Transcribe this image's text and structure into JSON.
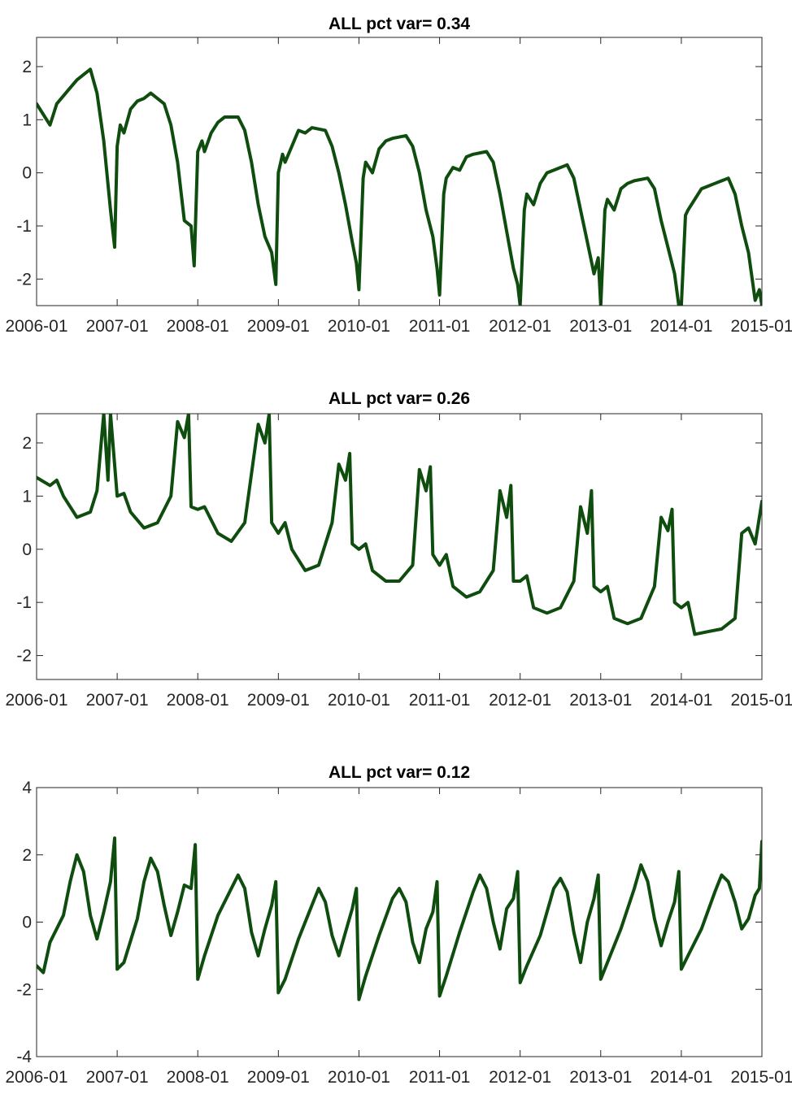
{
  "figure": {
    "line_color": "#0f4d0f"
  },
  "chart_data": [
    {
      "type": "line",
      "title": "ALL pct var=  0.34",
      "xlabel": "",
      "ylabel": "",
      "x_ticks": [
        "2006-01",
        "2007-01",
        "2008-01",
        "2009-01",
        "2010-01",
        "2011-01",
        "2012-01",
        "2013-01",
        "2014-01",
        "2015-01"
      ],
      "xlim": [
        "2006-01",
        "2015-01"
      ],
      "y_ticks": [
        -2,
        -1,
        0,
        1,
        2
      ],
      "ylim": [
        -2.5,
        2.55
      ],
      "grid": false,
      "series": [
        {
          "x": [
            "2006-01",
            "2006-03",
            "2006-04",
            "2006-06",
            "2006-07",
            "2006-09",
            "2006-10",
            "2006-11",
            "2006-12",
            "2006-12-20",
            "2007-01",
            "2007-01-15",
            "2007-02",
            "2007-03",
            "2007-04",
            "2007-05",
            "2007-06",
            "2007-08",
            "2007-09",
            "2007-10",
            "2007-11",
            "2007-12",
            "2007-12-15",
            "2008-01",
            "2008-01-20",
            "2008-02",
            "2008-03",
            "2008-04",
            "2008-05",
            "2008-07",
            "2008-08",
            "2008-09",
            "2008-10",
            "2008-11",
            "2008-12",
            "2008-12-20",
            "2009-01",
            "2009-01-20",
            "2009-02",
            "2009-03",
            "2009-04",
            "2009-05",
            "2009-06",
            "2009-08",
            "2009-09",
            "2009-10",
            "2009-11",
            "2009-12",
            "2009-12-20",
            "2010-01",
            "2010-01-20",
            "2010-02",
            "2010-03",
            "2010-04",
            "2010-05",
            "2010-06",
            "2010-08",
            "2010-09",
            "2010-10",
            "2010-11",
            "2010-12",
            "2010-12-20",
            "2011-01",
            "2011-01-20",
            "2011-02",
            "2011-03",
            "2011-04",
            "2011-05",
            "2011-06",
            "2011-08",
            "2011-09",
            "2011-10",
            "2011-11",
            "2011-12",
            "2011-12-20",
            "2012-01",
            "2012-01-20",
            "2012-02",
            "2012-03",
            "2012-04",
            "2012-05",
            "2012-06",
            "2012-08",
            "2012-09",
            "2012-10",
            "2012-11",
            "2012-12",
            "2012-12-20",
            "2013-01",
            "2013-01-20",
            "2013-02",
            "2013-03",
            "2013-04",
            "2013-05",
            "2013-06",
            "2013-08",
            "2013-09",
            "2013-10",
            "2013-11",
            "2013-12",
            "2013-12-20",
            "2014-01",
            "2014-01-20",
            "2014-02",
            "2014-03",
            "2014-04",
            "2014-05",
            "2014-06",
            "2014-08",
            "2014-09",
            "2014-10",
            "2014-11",
            "2014-12",
            "2014-12-20",
            "2015-01"
          ],
          "y": [
            1.3,
            0.9,
            1.3,
            1.6,
            1.75,
            1.95,
            1.5,
            0.6,
            -0.7,
            -1.4,
            0.5,
            0.9,
            0.75,
            1.2,
            1.35,
            1.4,
            1.5,
            1.3,
            0.9,
            0.2,
            -0.9,
            -1.0,
            -1.75,
            0.4,
            0.6,
            0.4,
            0.75,
            0.95,
            1.05,
            1.05,
            0.8,
            0.2,
            -0.6,
            -1.2,
            -1.5,
            -2.1,
            0.0,
            0.35,
            0.2,
            0.5,
            0.8,
            0.75,
            0.85,
            0.8,
            0.5,
            0.0,
            -0.6,
            -1.3,
            -1.7,
            -2.2,
            -0.1,
            0.2,
            0.0,
            0.45,
            0.6,
            0.65,
            0.7,
            0.5,
            0.0,
            -0.7,
            -1.2,
            -1.8,
            -2.3,
            -0.4,
            -0.1,
            0.1,
            0.05,
            0.3,
            0.35,
            0.4,
            0.2,
            -0.4,
            -1.1,
            -1.8,
            -2.1,
            -2.5,
            -0.7,
            -0.4,
            -0.6,
            -0.2,
            0.0,
            0.05,
            0.15,
            -0.1,
            -0.7,
            -1.3,
            -1.9,
            -1.6,
            -2.5,
            -0.7,
            -0.5,
            -0.7,
            -0.3,
            -0.2,
            -0.15,
            -0.1,
            -0.3,
            -0.9,
            -1.4,
            -1.9,
            -2.5,
            -2.5,
            -0.8,
            -0.7,
            -0.5,
            -0.3,
            -0.25,
            -0.2,
            -0.1,
            -0.4,
            -1.0,
            -1.5,
            -2.4,
            -2.2,
            -2.5
          ],
          "color": "#0f4d0f"
        }
      ]
    },
    {
      "type": "line",
      "title": "ALL pct var=  0.26",
      "xlabel": "",
      "ylabel": "",
      "x_ticks": [
        "2006-01",
        "2007-01",
        "2008-01",
        "2009-01",
        "2010-01",
        "2011-01",
        "2012-01",
        "2013-01",
        "2014-01",
        "2015-01"
      ],
      "xlim": [
        "2006-01",
        "2015-01"
      ],
      "y_ticks": [
        -2,
        -1,
        0,
        1,
        2
      ],
      "ylim": [
        -2.45,
        2.55
      ],
      "grid": false,
      "series": [
        {
          "x": [
            "2006-01",
            "2006-03",
            "2006-04",
            "2006-05",
            "2006-07",
            "2006-09",
            "2006-10",
            "2006-11",
            "2006-11-20",
            "2006-12",
            "2007-01",
            "2007-02",
            "2007-03",
            "2007-05",
            "2007-07",
            "2007-09",
            "2007-10",
            "2007-11",
            "2007-11-20",
            "2007-12",
            "2008-01",
            "2008-02",
            "2008-04",
            "2008-06",
            "2008-08",
            "2008-10",
            "2008-11",
            "2008-11-20",
            "2008-12",
            "2009-01",
            "2009-02",
            "2009-03",
            "2009-05",
            "2009-07",
            "2009-09",
            "2009-10",
            "2009-11",
            "2009-11-20",
            "2009-12",
            "2010-01",
            "2010-02",
            "2010-03",
            "2010-05",
            "2010-07",
            "2010-09",
            "2010-10",
            "2010-11",
            "2010-11-20",
            "2010-12",
            "2011-01",
            "2011-02",
            "2011-03",
            "2011-05",
            "2011-07",
            "2011-09",
            "2011-10",
            "2011-11",
            "2011-11-20",
            "2011-12",
            "2012-01",
            "2012-02",
            "2012-03",
            "2012-05",
            "2012-07",
            "2012-09",
            "2012-10",
            "2012-11",
            "2012-11-20",
            "2012-12",
            "2013-01",
            "2013-02",
            "2013-03",
            "2013-05",
            "2013-07",
            "2013-09",
            "2013-10",
            "2013-11",
            "2013-11-20",
            "2013-12",
            "2014-01",
            "2014-02",
            "2014-03",
            "2014-05",
            "2014-07",
            "2014-09",
            "2014-10",
            "2014-11",
            "2014-12",
            "2015-01"
          ],
          "y": [
            1.35,
            1.2,
            1.3,
            1.0,
            0.6,
            0.7,
            1.1,
            2.55,
            1.3,
            2.55,
            1.0,
            1.05,
            0.7,
            0.4,
            0.5,
            1.0,
            2.4,
            2.1,
            2.55,
            0.8,
            0.75,
            0.8,
            0.3,
            0.15,
            0.5,
            2.35,
            2.0,
            2.55,
            0.5,
            0.3,
            0.5,
            0.0,
            -0.4,
            -0.3,
            0.5,
            1.6,
            1.3,
            1.8,
            0.1,
            0.0,
            0.1,
            -0.4,
            -0.6,
            -0.6,
            -0.3,
            1.5,
            1.1,
            1.55,
            -0.1,
            -0.3,
            -0.1,
            -0.7,
            -0.9,
            -0.8,
            -0.4,
            1.1,
            0.6,
            1.2,
            -0.6,
            -0.6,
            -0.5,
            -1.1,
            -1.2,
            -1.1,
            -0.6,
            0.8,
            0.3,
            1.1,
            -0.7,
            -0.8,
            -0.7,
            -1.3,
            -1.4,
            -1.3,
            -0.7,
            0.6,
            0.35,
            0.75,
            -1.0,
            -1.1,
            -1.0,
            -1.6,
            -1.55,
            -1.5,
            -1.3,
            0.3,
            0.4,
            0.1,
            0.9
          ],
          "color": "#0f4d0f"
        }
      ]
    },
    {
      "type": "line",
      "title": "ALL pct var=  0.12",
      "xlabel": "",
      "ylabel": "",
      "x_ticks": [
        "2006-01",
        "2007-01",
        "2008-01",
        "2009-01",
        "2010-01",
        "2011-01",
        "2012-01",
        "2013-01",
        "2014-01",
        "2015-01"
      ],
      "xlim": [
        "2006-01",
        "2015-01"
      ],
      "y_ticks": [
        -4,
        -2,
        0,
        2,
        4
      ],
      "ylim": [
        -4,
        4
      ],
      "grid": false,
      "series": [
        {
          "x": [
            "2006-01",
            "2006-02",
            "2006-03",
            "2006-05",
            "2006-06",
            "2006-07",
            "2006-08",
            "2006-09",
            "2006-10",
            "2006-11",
            "2006-12",
            "2006-12-20",
            "2007-01",
            "2007-02",
            "2007-04",
            "2007-05",
            "2007-06",
            "2007-07",
            "2007-08",
            "2007-09",
            "2007-10",
            "2007-11",
            "2007-12",
            "2007-12-20",
            "2008-01",
            "2008-02",
            "2008-04",
            "2008-06",
            "2008-07",
            "2008-08",
            "2008-09",
            "2008-10",
            "2008-11",
            "2008-12",
            "2008-12-20",
            "2009-01",
            "2009-02",
            "2009-04",
            "2009-06",
            "2009-07",
            "2009-08",
            "2009-09",
            "2009-10",
            "2009-11",
            "2009-12",
            "2009-12-20",
            "2010-01",
            "2010-02",
            "2010-04",
            "2010-06",
            "2010-07",
            "2010-08",
            "2010-09",
            "2010-10",
            "2010-11",
            "2010-12",
            "2010-12-20",
            "2011-01",
            "2011-02",
            "2011-04",
            "2011-06",
            "2011-07",
            "2011-08",
            "2011-09",
            "2011-10",
            "2011-11",
            "2011-12",
            "2011-12-20",
            "2012-01",
            "2012-02",
            "2012-04",
            "2012-06",
            "2012-07",
            "2012-08",
            "2012-09",
            "2012-10",
            "2012-11",
            "2012-12",
            "2012-12-20",
            "2013-01",
            "2013-02",
            "2013-04",
            "2013-06",
            "2013-07",
            "2013-08",
            "2013-09",
            "2013-10",
            "2013-11",
            "2013-12",
            "2013-12-20",
            "2014-01",
            "2014-02",
            "2014-04",
            "2014-06",
            "2014-07",
            "2014-08",
            "2014-09",
            "2014-10",
            "2014-11",
            "2014-12",
            "2014-12-20",
            "2015-01"
          ],
          "y": [
            -1.3,
            -1.5,
            -0.6,
            0.2,
            1.2,
            2.0,
            1.5,
            0.2,
            -0.5,
            0.3,
            1.2,
            2.5,
            -1.4,
            -1.2,
            0.1,
            1.2,
            1.9,
            1.5,
            0.5,
            -0.4,
            0.3,
            1.1,
            1.0,
            2.3,
            -1.7,
            -1.0,
            0.2,
            1.0,
            1.4,
            1.0,
            -0.3,
            -1.0,
            -0.2,
            0.5,
            1.2,
            -2.1,
            -1.7,
            -0.5,
            0.5,
            1.0,
            0.6,
            -0.4,
            -1.0,
            -0.3,
            0.4,
            1.0,
            -2.3,
            -1.6,
            -0.4,
            0.7,
            1.0,
            0.6,
            -0.6,
            -1.2,
            -0.2,
            0.3,
            1.2,
            -2.2,
            -1.6,
            -0.3,
            0.9,
            1.4,
            1.0,
            0.0,
            -0.8,
            0.4,
            0.7,
            1.5,
            -1.8,
            -1.3,
            -0.4,
            1.0,
            1.3,
            0.9,
            -0.3,
            -1.2,
            0.0,
            0.7,
            1.4,
            -1.7,
            -1.2,
            -0.2,
            1.0,
            1.7,
            1.2,
            0.1,
            -0.7,
            0.0,
            0.6,
            1.5,
            -1.4,
            -1.0,
            -0.2,
            0.9,
            1.4,
            1.2,
            0.6,
            -0.2,
            0.1,
            0.8,
            1.0,
            2.4
          ],
          "color": "#0f4d0f"
        }
      ]
    }
  ]
}
